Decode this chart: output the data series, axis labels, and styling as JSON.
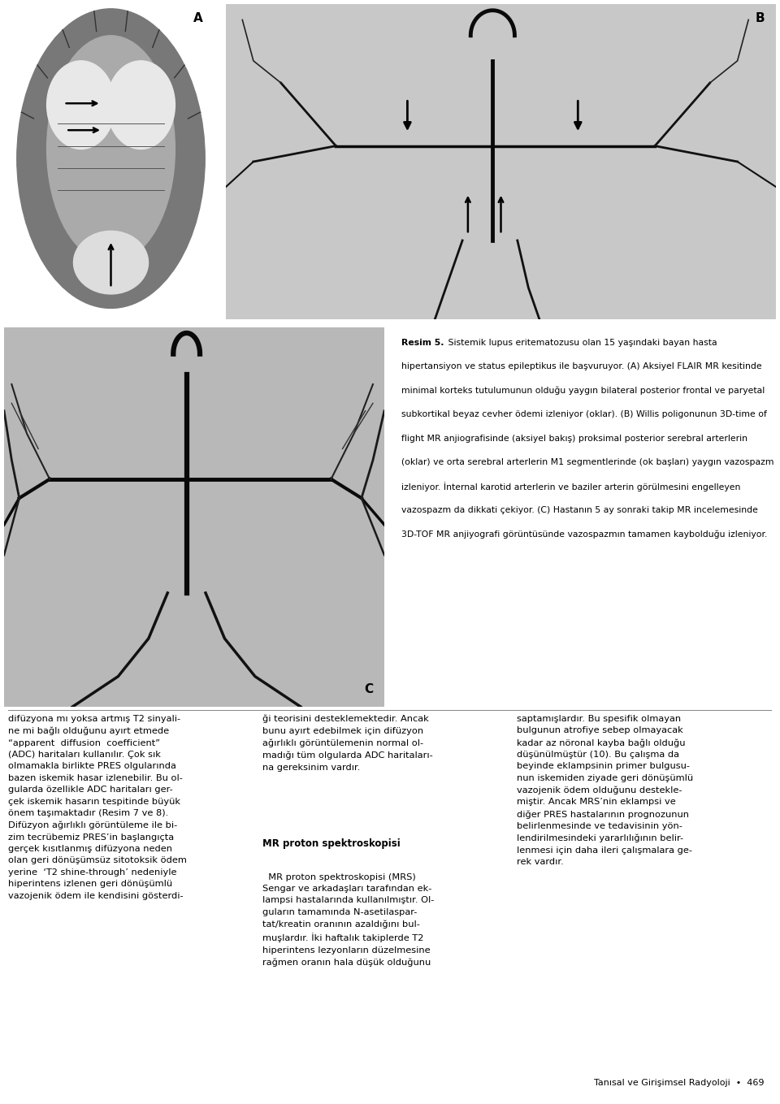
{
  "background_color": "#ffffff",
  "page_width": 9.6,
  "page_height": 13.59,
  "label_A": "A",
  "label_B": "B",
  "label_C": "C",
  "caption_title": "Resim 5.",
  "cap_line1": " Sistemik lupus eritematozusu olan 15 yaşındaki bayan hasta",
  "cap_line2": "hipertansiyon ve status epileptikus ile başvuruyor. (A) Aksiyel FLAIR MR kesitinde",
  "cap_line3": "minimal korteks tutulumunun olduğu yaygın bilateral posterior frontal ve paryetal",
  "cap_line4": "subkortikal beyaz cevher ödemi izleniyor (oklar). (B) Willis poligonunun 3D-time of",
  "cap_line5": "flight MR anjiografisinde (aksiyel bakış) proksimal posterior serebral arterlerin",
  "cap_line6": "(oklar) ve orta serebral arterlerin M1 segmentlerinde (ok başları) yaygın vazospazm",
  "cap_line7": "izleniyor. İnternal karotid arterlerin ve baziler arterin görülmesini engelleyen",
  "cap_line8": "vazospazm da dikkati çekiyor. (C) Hastanın 5 ay sonraki takip MR incelemesinde",
  "cap_line9": "3D-TOF MR anjiyografi görüntüsünde vazospazmın tamamen kaybolduğu izleniyor.",
  "col1_lines": [
    "difüzyona mı yoksa artmış T2 sinyali-",
    "ne mi bağlı olduğunu ayırt etmede",
    "“apparent  diffusion  coefficient”",
    "(ADC) haritaları kullanılır. Çok sık",
    "olmamakla birlikte PRES olgularında",
    "bazen iskemik hasar izlenebilir. Bu ol-",
    "gularda özellikle ADC haritaları ger-",
    "çek iskemik hasarın tespitinde büyük",
    "önem taşımaktadır (Resim 7 ve 8).",
    "Difüzyon ağırlıklı görüntüleme ile bi-",
    "zim tecrübemiz PRES’in başlangıçta",
    "gerçek kısıtlanmış difüzyona neden",
    "olan geri dönüşümsüz sitotoksik ödem",
    "yerine  ‘T2 shine-through’ nedeniyle",
    "hiperintens izlenen geri dönüşümlü",
    "vazojenik ödem ile kendisini gösterdi-"
  ],
  "col2_lines_before_header": [
    "ği teorisini desteklemektedir. Ancak",
    "bunu ayırt edebilmek için difüzyon",
    "ağırlıklı görüntülemenin normal ol-",
    "madığı tüm olgularda ADC haritaları-",
    "na gereksinim vardır."
  ],
  "col2_header": "MR proton spektroskopisi",
  "col2_lines_after_header": [
    "  MR proton spektroskopisi (MRS)",
    "Sengar ve arkadaşları tarafından ek-",
    "lampsi hastalarında kullanılmıştır. Ol-",
    "guların tamamında N-asetilaspar-",
    "tat/kreatin oranının azaldığını bul-",
    "muşlardır. İki haftalık takiplerde T2",
    "hiperintens lezyonların düzelmesine",
    "rağmen oranın hala düşük olduğunu"
  ],
  "col3_lines": [
    "saptamışlardır. Bu spesifik olmayan",
    "bulgunun atrofiye sebep olmayacak",
    "kadar az nöronal kayba bağlı olduğu",
    "düşünülmüştür (10). Bu çalışma da",
    "beyinde eklampsinin primer bulgusu-",
    "nun iskemiden ziyade geri dönüşümlü",
    "vazojenik ödem olduğunu destekle-",
    "miştir. Ancak MRS’nin eklampsi ve",
    "diğer PRES hastalarının prognozunun",
    "belirlenmesinde ve tedavisinin yön-",
    "lendirilmesindeki yararlılığının belir-",
    "lenmesi için daha ileri çalışmalara ge-",
    "rek vardır."
  ],
  "footer_text": "Tanısal ve Girişimsel Radyoloji  •  469",
  "img_A_color": "#b0b0b0",
  "img_B_color": "#c8c8c8",
  "img_C_color": "#b8b8b8",
  "font_size_body": 8.2,
  "font_size_header": 8.5,
  "font_size_caption": 7.8,
  "font_size_label": 11,
  "font_size_footer": 8.0
}
